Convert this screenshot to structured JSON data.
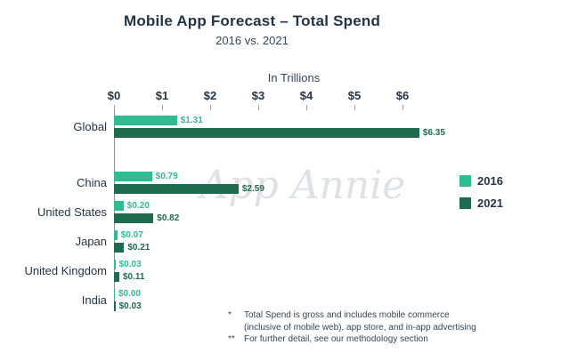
{
  "title": "Mobile App Forecast – Total Spend",
  "subtitle": "2016 vs. 2021",
  "axis_title": "In Trillions",
  "watermark": "App Annie",
  "colors": {
    "series_2016": "#30BB90",
    "series_2021": "#1E6B4F",
    "heading": "#243447"
  },
  "legend": [
    {
      "label": "2016",
      "color": "#30BB90"
    },
    {
      "label": "2021",
      "color": "#1E6B4F"
    }
  ],
  "footnotes": [
    {
      "marker": "*",
      "lines": [
        "Total Spend is gross and includes mobile commerce",
        "(inclusive of mobile web), app store, and in-app advertising"
      ]
    },
    {
      "marker": "**",
      "lines": [
        "For further detail, see our methodology section"
      ]
    }
  ],
  "chart_data": {
    "type": "bar",
    "orientation": "horizontal",
    "title": "Mobile App Forecast – Total Spend",
    "subtitle": "2016 vs. 2021",
    "unit_label": "In Trillions",
    "categories": [
      "Global",
      "China",
      "United States",
      "Japan",
      "United Kingdom",
      "India"
    ],
    "series": [
      {
        "name": "2016",
        "color": "#30BB90",
        "values": [
          1.31,
          0.79,
          0.2,
          0.07,
          0.03,
          0.0
        ]
      },
      {
        "name": "2021",
        "color": "#1E6B4F",
        "values": [
          6.35,
          2.59,
          0.82,
          0.21,
          0.11,
          0.03
        ]
      }
    ],
    "x_ticks": [
      "$0",
      "$1",
      "$2",
      "$3",
      "$4",
      "$5",
      "$6"
    ],
    "x_range": [
      0,
      6.35
    ],
    "value_prefix": "$",
    "grid": false,
    "legend_position": "right"
  }
}
